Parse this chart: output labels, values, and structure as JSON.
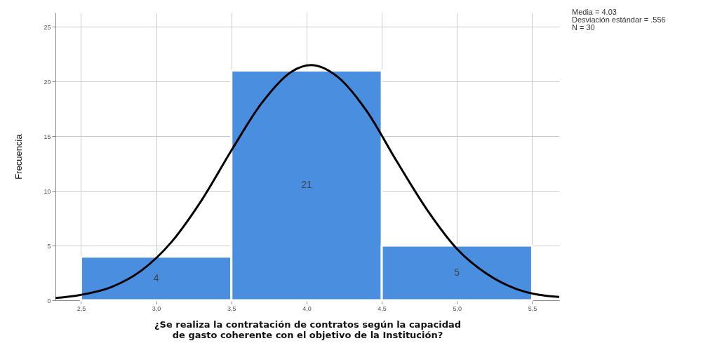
{
  "chart_data": {
    "type": "histogram",
    "xlabel": "¿Se realiza la contratación de contratos según la capacidad de gasto coherente con el objetivo de la Institución?",
    "ylabel": "Frecuencia",
    "bins": [
      2.5,
      3.5,
      4.5,
      5.5
    ],
    "values": [
      4,
      21,
      5
    ],
    "color": "#4a8ee0",
    "value_labels": [
      "4",
      "21",
      "5"
    ],
    "series": [
      {
        "type": "line",
        "color": "#000000",
        "x": [
          2.33,
          2.5,
          2.7,
          2.9,
          3.1,
          3.3,
          3.5,
          3.7,
          3.9,
          4.03,
          4.2,
          4.4,
          4.6,
          4.8,
          5.0,
          5.2,
          5.4,
          5.68
        ],
        "values": [
          0.2,
          0.5,
          1.2,
          2.7,
          5.3,
          9.1,
          13.7,
          18.0,
          20.9,
          21.5,
          20.5,
          17.3,
          12.7,
          8.3,
          4.7,
          2.4,
          1.0,
          0.3
        ]
      }
    ],
    "xlim": [
      2.33,
      5.68
    ],
    "ylim": [
      0,
      26.3
    ],
    "xticks": [
      {
        "value": 2.5,
        "label": "2,5"
      },
      {
        "value": 3.0,
        "label": "3,0"
      },
      {
        "value": 3.5,
        "label": "3,5"
      },
      {
        "value": 4.0,
        "label": "4,0"
      },
      {
        "value": 4.5,
        "label": "4,5"
      },
      {
        "value": 5.0,
        "label": "5,0"
      },
      {
        "value": 5.5,
        "label": "5,5"
      }
    ],
    "yticks": [
      0,
      5,
      10,
      15,
      20,
      25
    ],
    "grid": true,
    "annotations": [
      "Media = 4.03",
      "Desviación estándar = .556",
      "N = 30"
    ]
  }
}
